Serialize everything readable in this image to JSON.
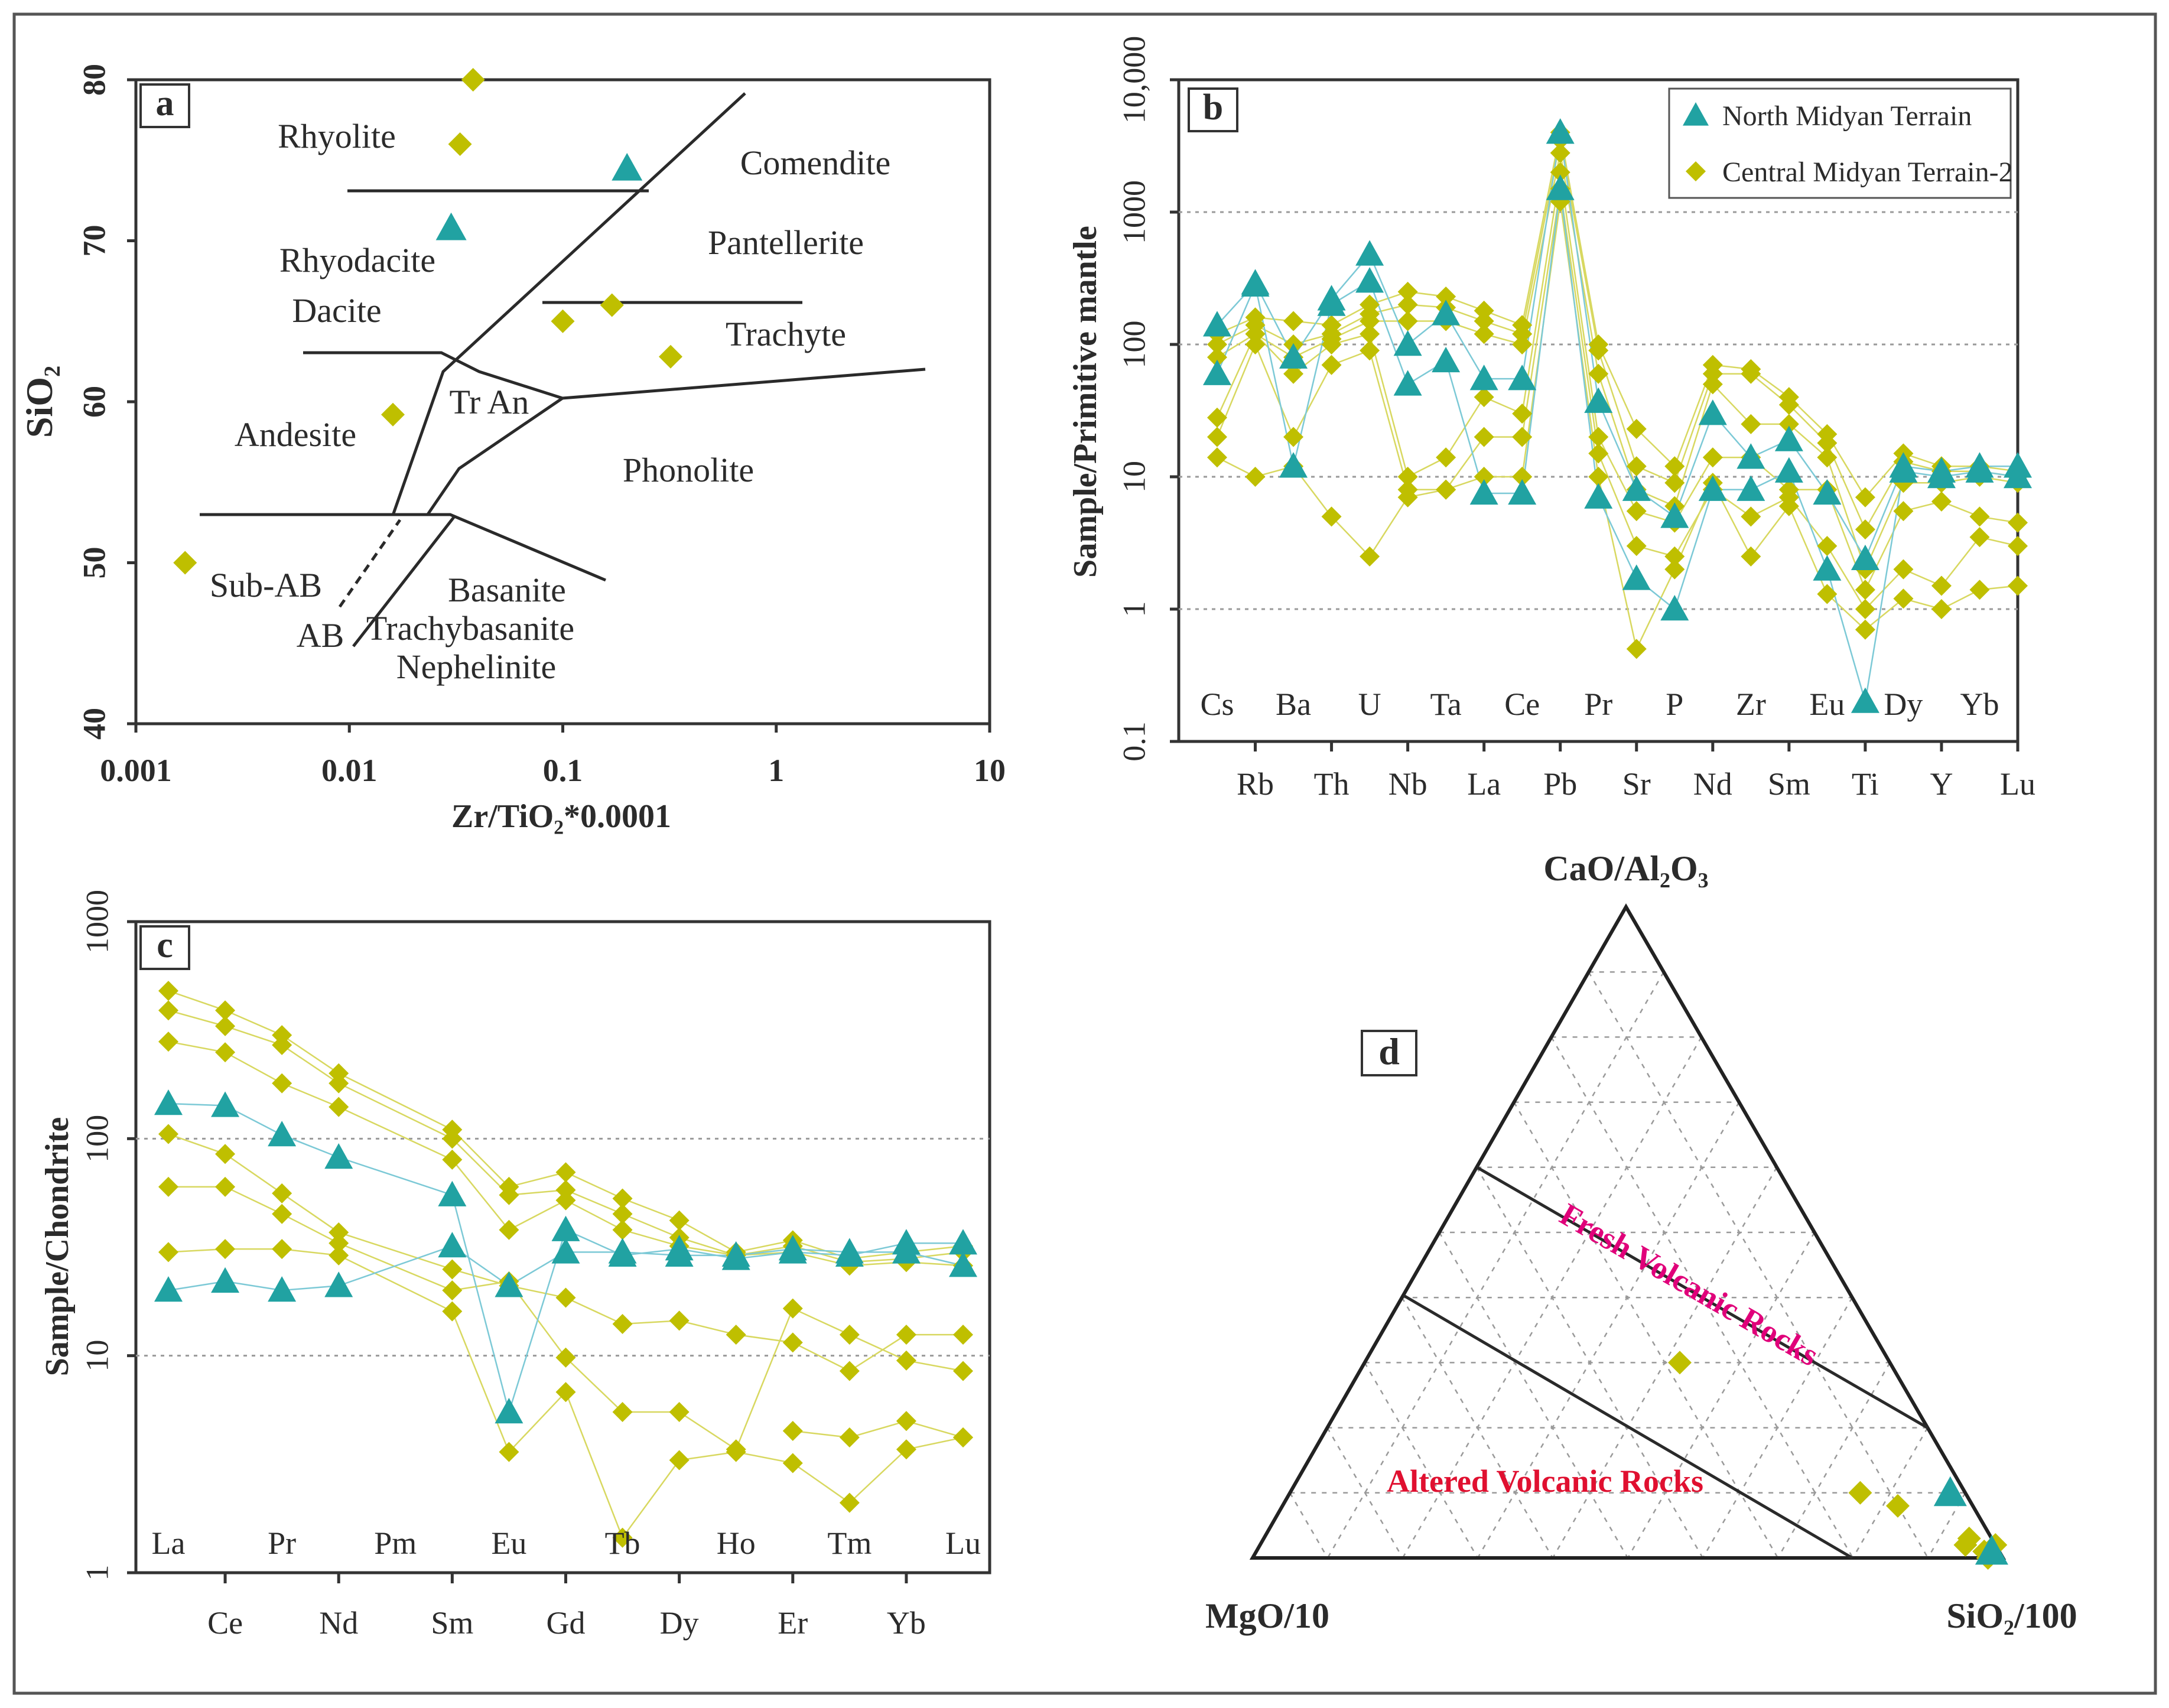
{
  "colors": {
    "north": "#21a2a2",
    "central": "#bfbf00",
    "north_line": "#7cc9d6",
    "central_line": "#d8d860",
    "fresh_label": "#e0007a",
    "altered_label": "#e01030"
  },
  "chart_data": [
    {
      "panel": "a",
      "type": "scatter",
      "title": "",
      "xlabel": "Zr/TiO₂*0.0001",
      "ylabel": "SiO₂",
      "xscale": "log",
      "xlim": [
        0.001,
        10
      ],
      "ylim": [
        40,
        80
      ],
      "x_ticks": [
        "0.001",
        "0.01",
        "0.1",
        "1",
        "10"
      ],
      "y_ticks": [
        "40",
        "50",
        "60",
        "70",
        "80"
      ],
      "fields": [
        "Rhyolite",
        "Comendite",
        "Rhyodacite",
        "Pantellerite",
        "Dacite",
        "Trachyte",
        "Tr An",
        "Andesite",
        "Phonolite",
        "Sub-AB",
        "AB",
        "Basanite",
        "Trachybasanite",
        "Nephelinite"
      ],
      "series": [
        {
          "name": "North Midyan Terrain",
          "marker": "triangle",
          "points": [
            [
              0.2,
              74.5
            ],
            [
              0.03,
              70.8
            ]
          ]
        },
        {
          "name": "Central Midyan Terrain-2",
          "marker": "diamond",
          "points": [
            [
              0.038,
              80.0
            ],
            [
              0.033,
              76.0
            ],
            [
              0.1,
              65.0
            ],
            [
              0.17,
              66.0
            ],
            [
              0.32,
              62.8
            ],
            [
              0.016,
              59.2
            ],
            [
              0.0017,
              50.0
            ]
          ]
        }
      ]
    },
    {
      "panel": "b",
      "type": "line",
      "title": "",
      "ylabel": "Sample/Primitive mantle",
      "yscale": "log",
      "ylim": [
        0.1,
        10000
      ],
      "y_ticks": [
        "0.1",
        "1",
        "10",
        "100",
        "1000",
        "10,000"
      ],
      "categories": [
        "Cs",
        "Rb",
        "Ba",
        "Th",
        "U",
        "Nb",
        "Ta",
        "La",
        "Ce",
        "Pb",
        "Pr",
        "Sr",
        "P",
        "Nd",
        "Zr",
        "Sm",
        "Eu",
        "Ti",
        "Dy",
        "Y",
        "Yb",
        "Lu"
      ],
      "legend": [
        "North Midyan Terrain",
        "Central Midyan Terrain-2"
      ],
      "series": [
        {
          "name": "North Midyan Terrain",
          "marker": "triangle",
          "values": [
            140,
            290,
            80,
            220,
            480,
            100,
            170,
            55,
            55,
            4000,
            37,
            8,
            5,
            30,
            14,
            19,
            7.5,
            2.4,
            12,
            11,
            12,
            12
          ]
        },
        {
          "name": "North Midyan Terrain",
          "marker": "triangle",
          "values": [
            60,
            280,
            12,
            200,
            300,
            50,
            75,
            7.5,
            7.5,
            1500,
            7,
            1.7,
            1,
            8,
            8,
            11,
            2,
            0.2,
            11,
            10,
            11,
            10
          ]
        },
        {
          "name": "Central Midyan Terrain-2",
          "marker": "diamond",
          "values": [
            120,
            160,
            150,
            140,
            200,
            250,
            230,
            180,
            140,
            4000,
            100,
            23,
            12,
            70,
            65,
            40,
            21,
            7,
            15,
            12,
            12,
            11
          ]
        },
        {
          "name": "Central Midyan Terrain-2",
          "marker": "diamond",
          "values": [
            100,
            140,
            100,
            120,
            170,
            200,
            190,
            150,
            120,
            3500,
            90,
            12,
            9,
            60,
            60,
            35,
            18,
            4,
            13,
            11,
            11,
            10
          ]
        },
        {
          "name": "Central Midyan Terrain-2",
          "marker": "diamond",
          "values": [
            80,
            120,
            80,
            110,
            150,
            150,
            150,
            120,
            100,
            2800,
            60,
            8,
            6,
            50,
            25,
            25,
            14,
            2,
            9,
            9,
            10,
            9
          ]
        },
        {
          "name": "Central Midyan Terrain-2",
          "marker": "diamond",
          "values": [
            28,
            120,
            60,
            100,
            120,
            10,
            14,
            40,
            30,
            2000,
            20,
            5.5,
            4.5,
            14,
            14,
            8,
            8,
            1.4,
            5.5,
            6.5,
            5,
            4.5
          ]
        },
        {
          "name": "Central Midyan Terrain-2",
          "marker": "diamond",
          "values": [
            20,
            100,
            20,
            70,
            90,
            8,
            8,
            20,
            20,
            1500,
            15,
            3,
            2.5,
            8,
            5,
            7,
            3,
            1,
            2,
            1.5,
            3.5,
            3
          ]
        },
        {
          "name": "Central Midyan Terrain-2",
          "marker": "diamond",
          "values": [
            14,
            10,
            12,
            5,
            2.5,
            7,
            8,
            10,
            10,
            1200,
            10,
            0.5,
            2,
            9,
            2.5,
            6,
            1.3,
            0.7,
            1.2,
            1,
            1.4,
            1.5
          ]
        }
      ]
    },
    {
      "panel": "c",
      "type": "line",
      "title": "",
      "ylabel": "Sample/Chondrite",
      "yscale": "log",
      "ylim": [
        1,
        1000
      ],
      "y_ticks": [
        "1",
        "10",
        "100",
        "1000"
      ],
      "categories": [
        "La",
        "Ce",
        "Pr",
        "Nd",
        "Pm",
        "Sm",
        "Eu",
        "Gd",
        "Tb",
        "Dy",
        "Ho",
        "Er",
        "Tm",
        "Yb",
        "Lu"
      ],
      "series": [
        {
          "name": "North Midyan Terrain",
          "marker": "triangle",
          "values": [
            145,
            142,
            104,
            82,
            null,
            55,
            5.5,
            38,
            29,
            31,
            28,
            30,
            29,
            33,
            33
          ]
        },
        {
          "name": "North Midyan Terrain",
          "marker": "triangle",
          "values": [
            20,
            22,
            20,
            21,
            null,
            32,
            21,
            30,
            30,
            29,
            29,
            31,
            30,
            30,
            26
          ]
        },
        {
          "name": "Central Midyan Terrain-2",
          "marker": "diamond",
          "values": [
            480,
            390,
            300,
            200,
            null,
            110,
            60,
            70,
            53,
            42,
            30,
            34,
            28,
            30,
            32
          ]
        },
        {
          "name": "Central Midyan Terrain-2",
          "marker": "diamond",
          "values": [
            390,
            330,
            270,
            180,
            null,
            100,
            55,
            58,
            45,
            35,
            29,
            32,
            27,
            28,
            30
          ]
        },
        {
          "name": "Central Midyan Terrain-2",
          "marker": "diamond",
          "values": [
            280,
            250,
            180,
            140,
            null,
            80,
            38,
            52,
            38,
            32,
            29,
            30,
            26,
            27,
            26
          ]
        },
        {
          "name": "Central Midyan Terrain-2",
          "marker": "diamond",
          "values": [
            105,
            85,
            56,
            37,
            null,
            25,
            21,
            18.5,
            14,
            14.5,
            12.5,
            11.5,
            8.5,
            12.5,
            12.5
          ]
        },
        {
          "name": "Central Midyan Terrain-2",
          "marker": "diamond",
          "values": [
            60,
            60,
            45,
            33,
            null,
            20,
            22,
            9.8,
            5.5,
            5.5,
            3.7,
            16.5,
            12.5,
            9.5,
            8.5
          ]
        },
        {
          "name": "Central Midyan Terrain-2",
          "marker": "diamond",
          "values": [
            30,
            31,
            31,
            29,
            null,
            16,
            3.6,
            6.8,
            1.45,
            3.3,
            3.6,
            3.2,
            2.1,
            3.7,
            4.2
          ]
        },
        {
          "name": "Central Midyan Terrain-2",
          "marker": "diamond",
          "values": [
            null,
            null,
            null,
            null,
            null,
            null,
            null,
            null,
            null,
            null,
            null,
            4.5,
            4.2,
            5,
            4.2
          ]
        }
      ]
    },
    {
      "panel": "d",
      "type": "scatter",
      "subtype": "ternary",
      "apex_top": "CaO/Al₂O₃",
      "apex_left": "MgO/10",
      "apex_right": "SiO₂/100",
      "field_labels": [
        "Fresh Volcanic Rocks",
        "Altered Volcanic Rocks"
      ],
      "series": [
        {
          "name": "North Midyan Terrain",
          "marker": "triangle",
          "points": [
            [
              0.1,
              0.02,
              0.88
            ],
            [
              0.01,
              0.01,
              0.98
            ]
          ]
        },
        {
          "name": "Central Midyan Terrain-2",
          "marker": "diamond",
          "points": [
            [
              0.3,
              0.28,
              0.42
            ],
            [
              0.1,
              0.14,
              0.76
            ],
            [
              0.08,
              0.1,
              0.82
            ],
            [
              0.02,
              0.04,
              0.94
            ],
            [
              0.03,
              0.03,
              0.94
            ],
            [
              0.01,
              0.02,
              0.97
            ],
            [
              0.02,
              0.0,
              0.98
            ],
            [
              0.0,
              0.02,
              0.98
            ]
          ]
        }
      ]
    }
  ]
}
